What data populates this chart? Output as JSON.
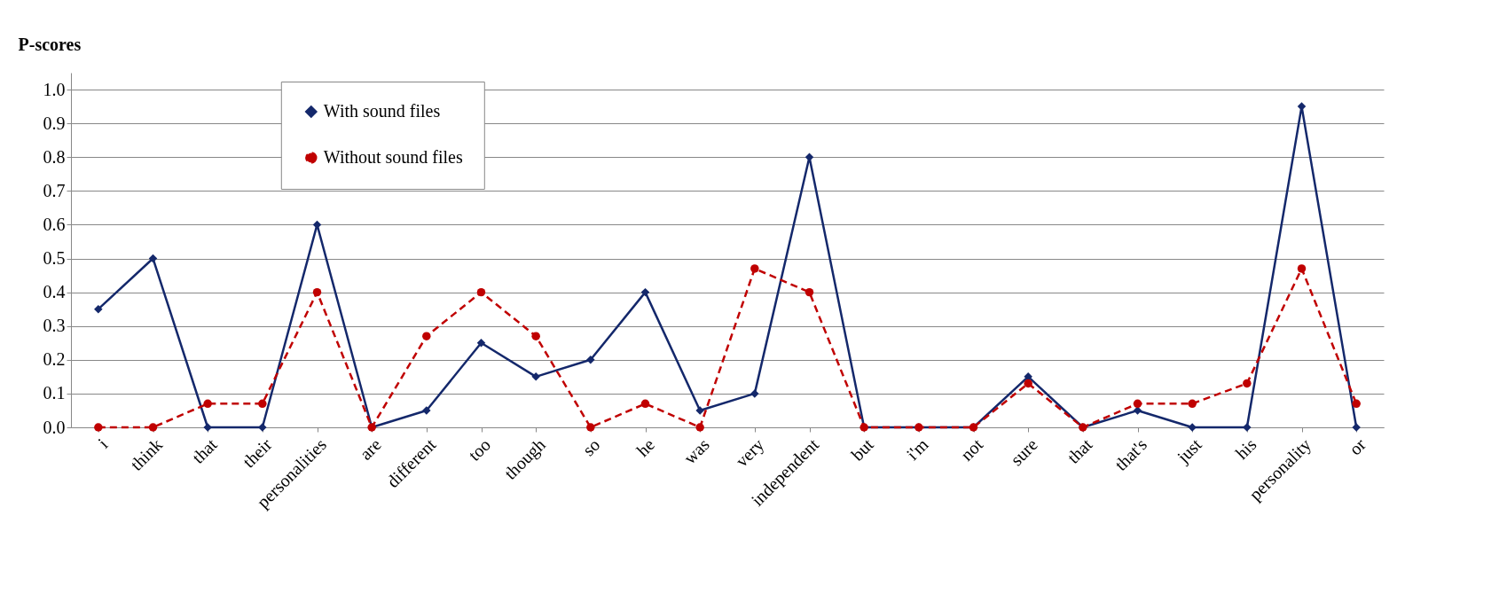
{
  "chart_data": {
    "type": "line",
    "ylabel": "P-scores",
    "categories": [
      "i",
      "think",
      "that",
      "their",
      "personalities",
      "are",
      "different",
      "too",
      "though",
      "so",
      "he",
      "was",
      "very",
      "independent",
      "but",
      "i'm",
      "not",
      "sure",
      "that",
      "that's",
      "just",
      "his",
      "personality",
      "or"
    ],
    "series": [
      {
        "name": "With sound files",
        "color": "#14286b",
        "marker": "diamond",
        "line_style": "solid",
        "values": [
          0.35,
          0.5,
          0,
          0,
          0.6,
          0,
          0.05,
          0.25,
          0.15,
          0.2,
          0.4,
          0.05,
          0.1,
          0.8,
          0,
          0,
          0,
          0.15,
          0,
          0.05,
          0,
          0,
          0.95,
          0
        ]
      },
      {
        "name": "Without sound files",
        "color": "#c00000",
        "marker": "circle",
        "line_style": "dashed",
        "values": [
          0,
          0,
          0.07,
          0.07,
          0.4,
          0,
          0.27,
          0.4,
          0.27,
          0,
          0.07,
          0,
          0.47,
          0.4,
          0,
          0,
          0,
          0.13,
          0,
          0.07,
          0.07,
          0.13,
          0.47,
          0.07
        ]
      }
    ],
    "ylim": [
      0,
      1.05
    ],
    "yticks": [
      {
        "value": 0,
        "label": "0.0"
      },
      0.1,
      0.2,
      0.3,
      0.4,
      0.5,
      0.6,
      0.7,
      0.8,
      0.9,
      {
        "value": 1,
        "label": "1.0"
      }
    ],
    "grid": "y",
    "legend": "top"
  }
}
